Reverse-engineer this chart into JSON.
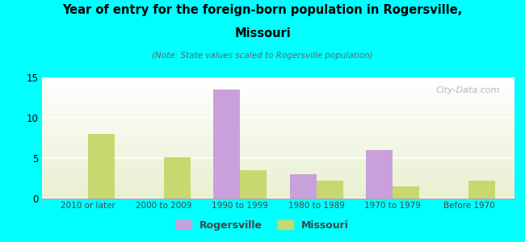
{
  "categories": [
    "2010 or later",
    "2000 to 2009",
    "1990 to 1999",
    "1980 to 1989",
    "1970 to 1979",
    "Before 1970"
  ],
  "rogersville": [
    0,
    0,
    13.5,
    3.0,
    6.0,
    0
  ],
  "missouri": [
    8.0,
    5.1,
    3.5,
    2.2,
    1.5,
    2.2
  ],
  "rogersville_color": "#c9a0dc",
  "missouri_color": "#c8d870",
  "title_line1": "Year of entry for the foreign-born population in Rogersville,",
  "title_line2": "Missouri",
  "subtitle": "(Note: State values scaled to Rogersville population)",
  "ylim": [
    0,
    15
  ],
  "yticks": [
    0,
    5,
    10,
    15
  ],
  "background_color": "#00FFFF",
  "plot_bg_color": "#e8f0d0",
  "bar_width": 0.35,
  "watermark": "City-Data.com",
  "legend_rogersville": "Rogersville",
  "legend_missouri": "Missouri"
}
